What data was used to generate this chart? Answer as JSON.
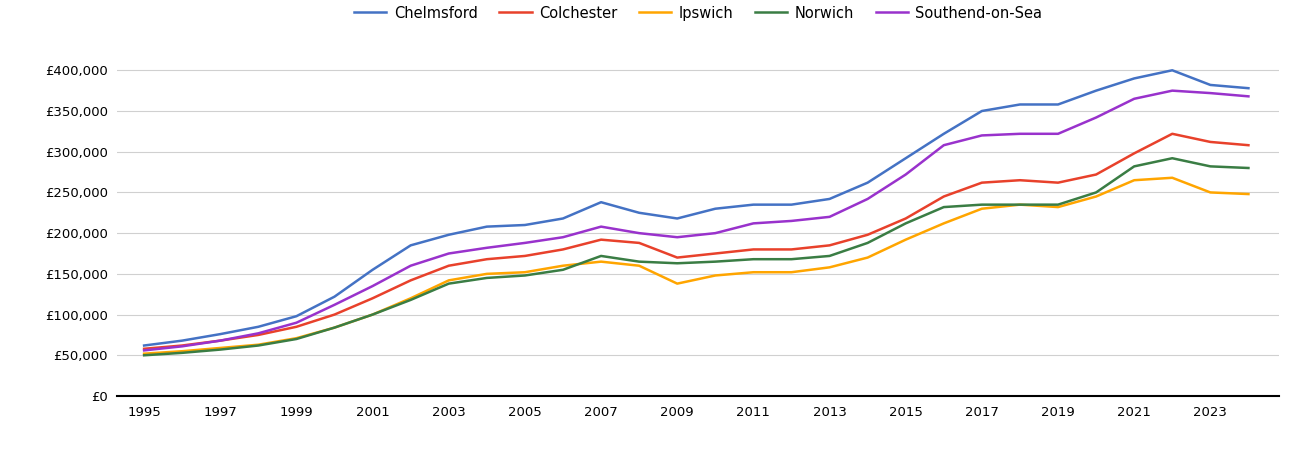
{
  "years": [
    1995,
    1996,
    1997,
    1998,
    1999,
    2000,
    2001,
    2002,
    2003,
    2004,
    2005,
    2006,
    2007,
    2008,
    2009,
    2010,
    2011,
    2012,
    2013,
    2014,
    2015,
    2016,
    2017,
    2018,
    2019,
    2020,
    2021,
    2022,
    2023,
    2024
  ],
  "series": {
    "Chelmsford": [
      62000,
      68000,
      76000,
      85000,
      98000,
      122000,
      155000,
      185000,
      198000,
      208000,
      210000,
      218000,
      238000,
      225000,
      218000,
      230000,
      235000,
      235000,
      242000,
      262000,
      292000,
      322000,
      350000,
      358000,
      358000,
      375000,
      390000,
      400000,
      382000,
      378000
    ],
    "Colchester": [
      58000,
      62000,
      68000,
      75000,
      85000,
      100000,
      120000,
      142000,
      160000,
      168000,
      172000,
      180000,
      192000,
      188000,
      170000,
      175000,
      180000,
      180000,
      185000,
      198000,
      218000,
      245000,
      262000,
      265000,
      262000,
      272000,
      298000,
      322000,
      312000,
      308000
    ],
    "Ipswich": [
      52000,
      55000,
      59000,
      63000,
      71000,
      84000,
      100000,
      120000,
      142000,
      150000,
      152000,
      160000,
      165000,
      160000,
      138000,
      148000,
      152000,
      152000,
      158000,
      170000,
      192000,
      212000,
      230000,
      235000,
      232000,
      245000,
      265000,
      268000,
      250000,
      248000
    ],
    "Norwich": [
      50000,
      53000,
      57000,
      62000,
      70000,
      84000,
      100000,
      118000,
      138000,
      145000,
      148000,
      155000,
      172000,
      165000,
      163000,
      165000,
      168000,
      168000,
      172000,
      188000,
      212000,
      232000,
      235000,
      235000,
      235000,
      250000,
      282000,
      292000,
      282000,
      280000
    ],
    "Southend-on-Sea": [
      56000,
      61000,
      68000,
      77000,
      90000,
      112000,
      135000,
      160000,
      175000,
      182000,
      188000,
      195000,
      208000,
      200000,
      195000,
      200000,
      212000,
      215000,
      220000,
      242000,
      272000,
      308000,
      320000,
      322000,
      322000,
      342000,
      365000,
      375000,
      372000,
      368000
    ]
  },
  "colors": {
    "Chelmsford": "#4472C4",
    "Colchester": "#E8412B",
    "Ipswich": "#FFA500",
    "Norwich": "#3A7D44",
    "Southend-on-Sea": "#9932CC"
  },
  "ylim": [
    0,
    420000
  ],
  "yticks": [
    0,
    50000,
    100000,
    150000,
    200000,
    250000,
    300000,
    350000,
    400000
  ],
  "xticks": [
    1995,
    1997,
    1999,
    2001,
    2003,
    2005,
    2007,
    2009,
    2011,
    2013,
    2015,
    2017,
    2019,
    2021,
    2023
  ],
  "background_color": "#ffffff",
  "grid_color": "#d0d0d0"
}
